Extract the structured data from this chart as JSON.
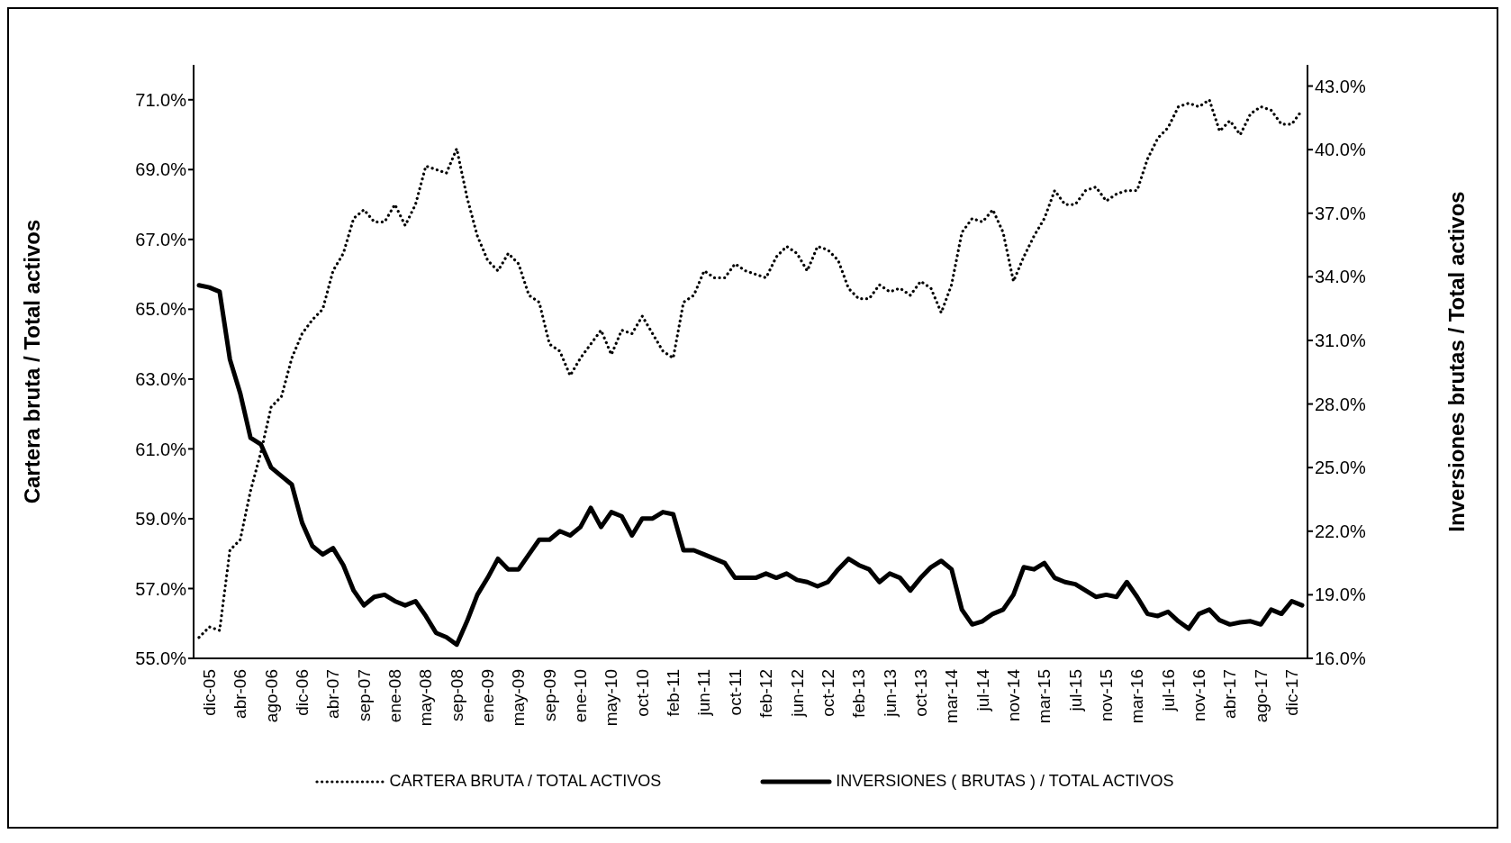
{
  "chart_data": {
    "type": "line",
    "xlabel": null,
    "ylabel": "Cartera bruta / Total activos",
    "y2label": "Inversiones brutas / Total activos",
    "categories": [
      null,
      "dic-05",
      null,
      null,
      "abr-06",
      null,
      null,
      "ago-06",
      null,
      null,
      "dic-06",
      null,
      null,
      "abr-07",
      null,
      null,
      "sep-07",
      null,
      null,
      "ene-08",
      null,
      null,
      "may-08",
      null,
      null,
      "sep-08",
      null,
      null,
      "ene-09",
      null,
      null,
      "may-09",
      null,
      null,
      "sep-09",
      null,
      null,
      "ene-10",
      null,
      null,
      "may-10",
      null,
      null,
      "oct-10",
      null,
      null,
      "feb-11",
      null,
      null,
      "jun-11",
      null,
      null,
      "oct-11",
      null,
      null,
      "feb-12",
      null,
      null,
      "jun-12",
      null,
      null,
      "oct-12",
      null,
      null,
      "feb-13",
      null,
      null,
      "jun-13",
      null,
      null,
      "oct-13",
      null,
      null,
      "mar-14",
      null,
      null,
      "jul-14",
      null,
      null,
      "nov-14",
      null,
      null,
      "mar-15",
      null,
      null,
      "jul-15",
      null,
      null,
      "nov-15",
      null,
      null,
      "mar-16",
      null,
      null,
      "jul-16",
      null,
      null,
      "nov-16",
      null,
      null,
      "abr-17",
      null,
      null,
      "ago-17",
      null,
      null,
      "dic-17",
      null
    ],
    "series": [
      {
        "name": "CARTERA BRUTA / TOTAL ACTIVOS",
        "color": "#000000",
        "line_style": "dotted",
        "values": [
          55.6,
          55.9,
          55.8,
          58.1,
          58.4,
          59.8,
          60.9,
          62.2,
          62.5,
          63.6,
          64.3,
          64.7,
          65.0,
          66.1,
          66.6,
          67.6,
          67.85,
          67.5,
          67.5,
          68.0,
          67.4,
          68.0,
          69.1,
          69.0,
          68.9,
          69.6,
          68.2,
          67.1,
          66.4,
          66.1,
          66.6,
          66.3,
          65.4,
          65.2,
          64.0,
          63.8,
          63.1,
          63.6,
          64.0,
          64.4,
          63.7,
          64.4,
          64.3,
          64.8,
          64.3,
          63.8,
          63.6,
          65.2,
          65.4,
          66.1,
          65.9,
          65.9,
          66.3,
          66.1,
          66.0,
          65.9,
          66.5,
          66.8,
          66.6,
          66.1,
          66.8,
          66.7,
          66.4,
          65.6,
          65.3,
          65.3,
          65.7,
          65.5,
          65.6,
          65.4,
          65.8,
          65.6,
          64.9,
          65.7,
          67.2,
          67.6,
          67.5,
          67.85,
          67.2,
          65.8,
          66.5,
          67.1,
          67.6,
          68.4,
          68.0,
          68.0,
          68.4,
          68.5,
          68.1,
          68.3,
          68.4,
          68.4,
          69.3,
          69.9,
          70.2,
          70.8,
          70.9,
          70.8,
          71.0,
          70.1,
          70.4,
          70.0,
          70.6,
          70.8,
          70.7,
          70.3,
          70.3,
          70.7
        ]
      },
      {
        "name": "INVERSIONES ( BRUTAS ) / TOTAL ACTIVOS",
        "color": "#000000",
        "line_style": "solid",
        "axis": "y2",
        "values": [
          33.6,
          33.5,
          33.3,
          30.1,
          28.5,
          26.4,
          26.1,
          25.0,
          24.6,
          24.2,
          22.4,
          21.3,
          20.9,
          21.2,
          20.4,
          19.2,
          18.5,
          18.9,
          19.0,
          18.7,
          18.5,
          18.7,
          18.0,
          17.2,
          17.0,
          16.65,
          17.75,
          19.0,
          19.8,
          20.7,
          20.2,
          20.2,
          20.9,
          21.6,
          21.6,
          22.0,
          21.8,
          22.2,
          23.1,
          22.2,
          22.9,
          22.7,
          21.8,
          22.6,
          22.6,
          22.9,
          22.8,
          21.1,
          21.1,
          20.9,
          20.7,
          20.5,
          19.8,
          19.8,
          19.8,
          20.0,
          19.8,
          20.0,
          19.7,
          19.6,
          19.4,
          19.6,
          20.2,
          20.7,
          20.4,
          20.2,
          19.6,
          20.0,
          19.8,
          19.2,
          19.8,
          20.3,
          20.6,
          20.2,
          18.3,
          17.6,
          17.75,
          18.1,
          18.3,
          19.0,
          20.3,
          20.2,
          20.5,
          19.8,
          19.6,
          19.5,
          19.2,
          18.9,
          19.0,
          18.9,
          19.6,
          18.9,
          18.1,
          18.0,
          18.2,
          17.75,
          17.4,
          18.1,
          18.3,
          17.8,
          17.6,
          17.7,
          17.75,
          17.6,
          18.3,
          18.1,
          18.7,
          18.5
        ]
      }
    ],
    "ylim": [
      55,
      72
    ],
    "yticks": [
      {
        "value": 55,
        "label": "55.0%"
      },
      {
        "value": 57,
        "label": "57.0%"
      },
      {
        "value": 59,
        "label": "59.0%"
      },
      {
        "value": 61,
        "label": "61.0%"
      },
      {
        "value": 63,
        "label": "63.0%"
      },
      {
        "value": 65,
        "label": "65.0%"
      },
      {
        "value": 67,
        "label": "67.0%"
      },
      {
        "value": 69,
        "label": "69.0%"
      },
      {
        "value": 71,
        "label": "71.0%"
      }
    ],
    "y2lim": [
      16,
      44
    ],
    "y2ticks": [
      {
        "value": 16,
        "label": "16.0%"
      },
      {
        "value": 19,
        "label": "19.0%"
      },
      {
        "value": 22,
        "label": "22.0%"
      },
      {
        "value": 25,
        "label": "25.0%"
      },
      {
        "value": 28,
        "label": "28.0%"
      },
      {
        "value": 31,
        "label": "31.0%"
      },
      {
        "value": 34,
        "label": "34.0%"
      },
      {
        "value": 37,
        "label": "37.0%"
      },
      {
        "value": 40,
        "label": "40.0%"
      },
      {
        "value": 43,
        "label": "43.0%"
      }
    ],
    "legend": "bottom"
  }
}
